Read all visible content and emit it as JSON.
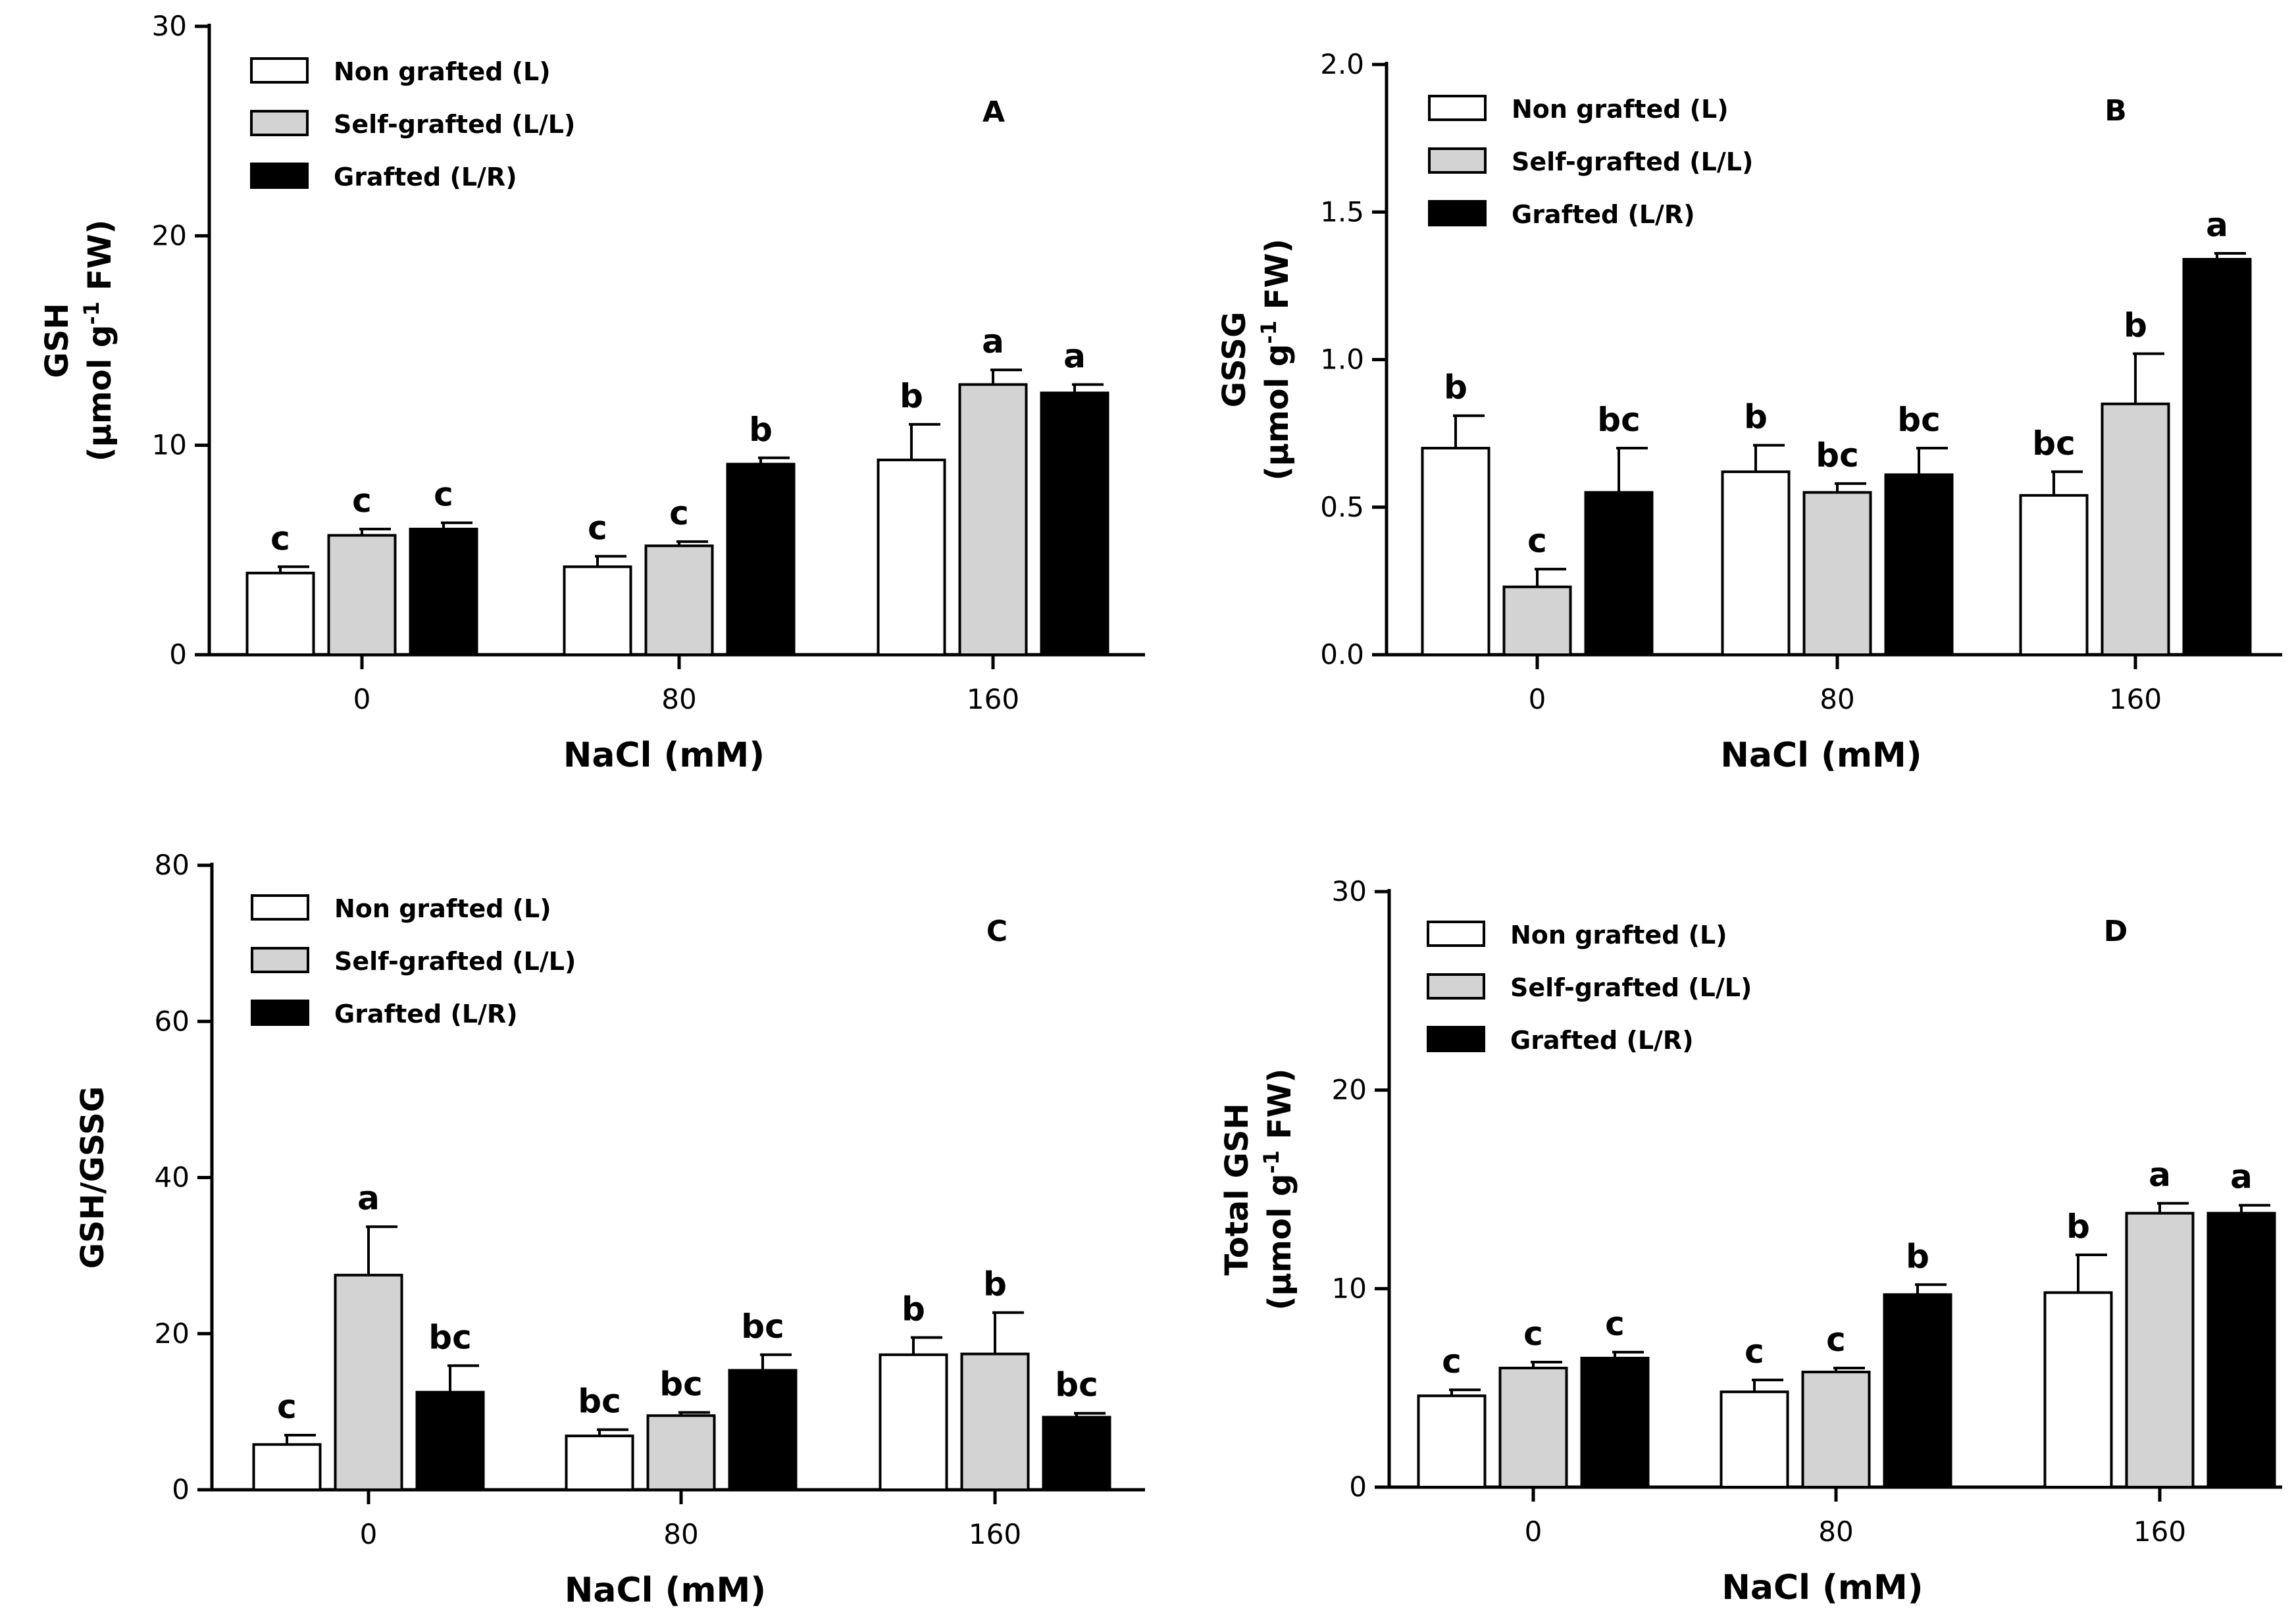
{
  "figure": {
    "background": "#ffffff",
    "series_colors": {
      "Non grafted (L)": "#ffffff",
      "Self-grafted (L/L)": "#d3d3d3",
      "Grafted (L/R)": "#000000"
    }
  },
  "chart_data": [
    {
      "id": "A",
      "type": "bar",
      "panel_label": "A",
      "xlabel": "NaCl (mM)",
      "ylabel": "GSH",
      "ylabel_unit": {
        "pre": "(µmol g",
        "sup": "-1",
        "post": " FW)"
      },
      "categories": [
        "0",
        "80",
        "160"
      ],
      "ylim": [
        0,
        30
      ],
      "yticks": [
        0,
        10,
        20,
        30
      ],
      "ytick_labels": [
        "0",
        "10",
        "20",
        "30"
      ],
      "legend_position": "top-left",
      "series": [
        {
          "name": "Non grafted (L)",
          "values": [
            3.9,
            4.2,
            9.3
          ],
          "errors": [
            0.3,
            0.5,
            1.7
          ],
          "letters": [
            "c",
            "c",
            "b"
          ]
        },
        {
          "name": "Self-grafted (L/L)",
          "values": [
            5.7,
            5.2,
            12.9
          ],
          "errors": [
            0.3,
            0.2,
            0.7
          ],
          "letters": [
            "c",
            "c",
            "a"
          ]
        },
        {
          "name": "Grafted (L/R)",
          "values": [
            6.0,
            9.1,
            12.5
          ],
          "errors": [
            0.3,
            0.3,
            0.4
          ],
          "letters": [
            "c",
            "b",
            "a"
          ]
        }
      ]
    },
    {
      "id": "B",
      "type": "bar",
      "panel_label": "B",
      "xlabel": "NaCl (mM)",
      "ylabel": "GSSG",
      "ylabel_unit": {
        "pre": "(µmol g",
        "sup": "-1",
        "post": " FW)"
      },
      "categories": [
        "0",
        "80",
        "160"
      ],
      "ylim": [
        0,
        2.0
      ],
      "yticks": [
        0,
        0.5,
        1.0,
        1.5,
        2.0
      ],
      "ytick_labels": [
        "0.0",
        "0.5",
        "1.0",
        "1.5",
        "2.0"
      ],
      "legend_position": "top-left",
      "series": [
        {
          "name": "Non grafted (L)",
          "values": [
            0.7,
            0.62,
            0.54
          ],
          "errors": [
            0.11,
            0.09,
            0.08
          ],
          "letters": [
            "b",
            "b",
            "bc"
          ]
        },
        {
          "name": "Self-grafted (L/L)",
          "values": [
            0.23,
            0.55,
            0.85
          ],
          "errors": [
            0.06,
            0.03,
            0.17
          ],
          "letters": [
            "c",
            "bc",
            "b"
          ]
        },
        {
          "name": "Grafted (L/R)",
          "values": [
            0.55,
            0.61,
            1.34
          ],
          "errors": [
            0.15,
            0.09,
            0.02
          ],
          "letters": [
            "bc",
            "bc",
            "a"
          ]
        }
      ]
    },
    {
      "id": "C",
      "type": "bar",
      "panel_label": "C",
      "xlabel": "NaCl (mM)",
      "ylabel": "GSH/GSSG",
      "categories": [
        "0",
        "80",
        "160"
      ],
      "ylim": [
        0,
        80
      ],
      "yticks": [
        0,
        20,
        40,
        60,
        80
      ],
      "ytick_labels": [
        "0",
        "20",
        "40",
        "60",
        "80"
      ],
      "legend_position": "top-left",
      "series": [
        {
          "name": "Non grafted (L)",
          "values": [
            5.8,
            6.9,
            17.3
          ],
          "errors": [
            1.2,
            0.8,
            2.2
          ],
          "letters": [
            "c",
            "bc",
            "b"
          ]
        },
        {
          "name": "Self-grafted (L/L)",
          "values": [
            27.5,
            9.5,
            17.4
          ],
          "errors": [
            6.2,
            0.4,
            5.3
          ],
          "letters": [
            "a",
            "bc",
            "b"
          ]
        },
        {
          "name": "Grafted (L/R)",
          "values": [
            12.5,
            15.3,
            9.3
          ],
          "errors": [
            3.4,
            2.0,
            0.5
          ],
          "letters": [
            "bc",
            "bc",
            "bc"
          ]
        }
      ]
    },
    {
      "id": "D",
      "type": "bar",
      "panel_label": "D",
      "xlabel": "NaCl (mM)",
      "ylabel": "Total GSH",
      "ylabel_unit": {
        "pre": "(µmol g",
        "sup": "-1",
        "post": " FW)"
      },
      "categories": [
        "0",
        "80",
        "160"
      ],
      "ylim": [
        0,
        30
      ],
      "yticks": [
        0,
        10,
        20,
        30
      ],
      "ytick_labels": [
        "0",
        "10",
        "20",
        "30"
      ],
      "legend_position": "top-left",
      "series": [
        {
          "name": "Non grafted (L)",
          "values": [
            4.6,
            4.8,
            9.8
          ],
          "errors": [
            0.3,
            0.6,
            1.9
          ],
          "letters": [
            "c",
            "c",
            "b"
          ]
        },
        {
          "name": "Self-grafted (L/L)",
          "values": [
            6.0,
            5.8,
            13.8
          ],
          "errors": [
            0.3,
            0.2,
            0.5
          ],
          "letters": [
            "c",
            "c",
            "a"
          ]
        },
        {
          "name": "Grafted (L/R)",
          "values": [
            6.5,
            9.7,
            13.8
          ],
          "errors": [
            0.3,
            0.5,
            0.4
          ],
          "letters": [
            "c",
            "b",
            "a"
          ]
        }
      ]
    }
  ]
}
